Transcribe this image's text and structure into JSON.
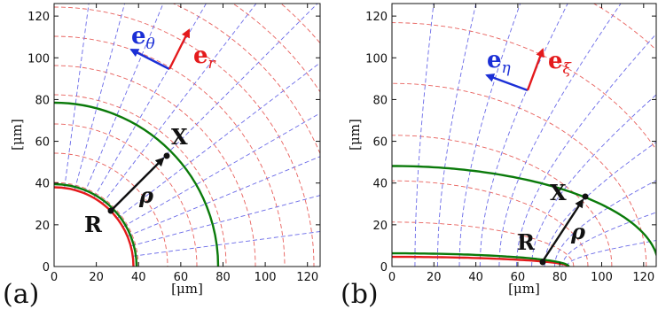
{
  "colors": {
    "red_grid": "#e8605c",
    "blue_grid": "#6a6ae8",
    "green": "#0a7a0a",
    "red": "#e41a1c",
    "blue": "#1b2fd6",
    "black": "#111111"
  },
  "panels": [
    {
      "label": "(a)",
      "xlabel": "[μm]",
      "ylabel": "[μm]",
      "xticks": [
        "0",
        "20",
        "40",
        "60",
        "80",
        "100",
        "120"
      ],
      "yticks": [
        "0",
        "20",
        "40",
        "60",
        "80",
        "100",
        "120"
      ],
      "xlim": [
        0,
        126
      ],
      "ylim": [
        0,
        126
      ],
      "basis": {
        "e1_main": "e",
        "e1_sub": "θ",
        "e2_main": "e",
        "e2_sub": "r"
      },
      "point_R": "R",
      "point_X": "X",
      "vector": "ρ"
    },
    {
      "label": "(b)",
      "xlabel": "[μm]",
      "ylabel": "[μm]",
      "xticks": [
        "0",
        "20",
        "40",
        "60",
        "80",
        "100",
        "120"
      ],
      "yticks": [
        "0",
        "20",
        "40",
        "60",
        "80",
        "100",
        "120"
      ],
      "xlim": [
        0,
        126
      ],
      "ylim": [
        0,
        126
      ],
      "basis": {
        "e1_main": "e",
        "e1_sub": "η",
        "e2_main": "e",
        "e2_sub": "ξ"
      },
      "point_R": "R",
      "point_X": "X",
      "vector": "ρ"
    }
  ]
}
